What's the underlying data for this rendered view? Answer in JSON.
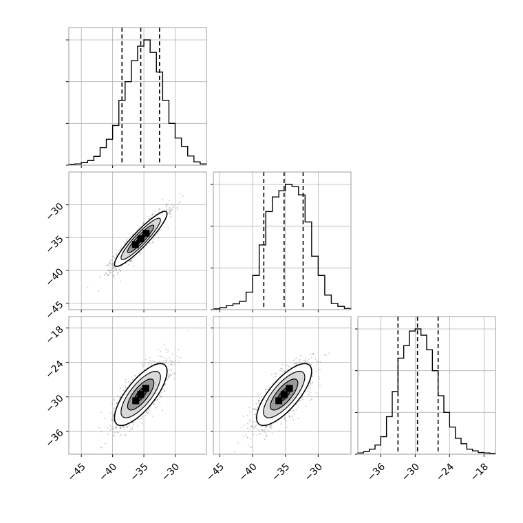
{
  "colors": {
    "line": "#000000",
    "grid": "#b0b0b0",
    "scatter": "#555555",
    "frame": "#999999"
  },
  "chart_data": {
    "type": "corner",
    "grid": true,
    "params": [
      {
        "range": [
          -47,
          -25
        ],
        "ticks": [
          -45,
          -40,
          -35,
          -30
        ]
      },
      {
        "range": [
          -46,
          -25
        ],
        "ticks": [
          -45,
          -40,
          -35,
          -30
        ]
      },
      {
        "range": [
          -40,
          -16
        ],
        "ticks": [
          -36,
          -30,
          -24,
          -18
        ]
      }
    ],
    "hist_ticks": [
      0,
      1,
      2,
      3
    ],
    "histograms": [
      {
        "param": 0,
        "edges": [
          -47,
          -46,
          -45,
          -44,
          -43,
          -42,
          -41,
          -40,
          -39,
          -38,
          -37,
          -36,
          -35,
          -34,
          -33,
          -32,
          -31,
          -30,
          -29,
          -28,
          -27,
          -26,
          -25
        ],
        "counts": [
          0.02,
          0.03,
          0.06,
          0.11,
          0.21,
          0.42,
          0.62,
          0.95,
          1.55,
          2.0,
          2.5,
          2.85,
          3.0,
          2.7,
          2.23,
          1.55,
          1.0,
          0.65,
          0.45,
          0.22,
          0.08,
          0.03
        ],
        "quantiles": [
          -38.5,
          -35.5,
          -32.5
        ]
      },
      {
        "param": 1,
        "edges": [
          -46,
          -45,
          -44,
          -43,
          -42,
          -41,
          -40,
          -39,
          -38,
          -37,
          -36,
          -35,
          -34,
          -33,
          -32,
          -31,
          -30,
          -29,
          -28,
          -27,
          -26,
          -25
        ],
        "counts": [
          0.02,
          0.05,
          0.1,
          0.14,
          0.2,
          0.42,
          0.82,
          1.55,
          2.35,
          2.7,
          2.85,
          3.0,
          2.95,
          2.75,
          2.1,
          1.28,
          0.82,
          0.35,
          0.15,
          0.08,
          0.03
        ],
        "quantiles": [
          -38.3,
          -35.2,
          -32.3
        ]
      },
      {
        "param": 2,
        "edges": [
          -40,
          -39,
          -38,
          -37,
          -36,
          -35,
          -34,
          -33,
          -32,
          -31,
          -30,
          -29,
          -28,
          -27,
          -26,
          -25,
          -24,
          -23,
          -22,
          -21,
          -20,
          -19,
          -18,
          -17,
          -16
        ],
        "counts": [
          0.03,
          0.06,
          0.12,
          0.22,
          0.42,
          0.9,
          1.5,
          2.3,
          2.6,
          2.95,
          3.0,
          2.85,
          2.5,
          2.0,
          1.4,
          1.0,
          0.65,
          0.38,
          0.25,
          0.12,
          0.08,
          0.04,
          0.03,
          0.02
        ],
        "quantiles": [
          -33.0,
          -29.6,
          -26.0
        ]
      }
    ],
    "scatter_panels": [
      {
        "x": 0,
        "y": 1,
        "mean": [
          -35.5,
          -35.2
        ],
        "sd": [
          2.1,
          2.1
        ],
        "corr": 0.92,
        "contour_levels": [
          0.5,
          1.0,
          1.5,
          2.0
        ],
        "n_points": 1500
      },
      {
        "x": 0,
        "y": 2,
        "mean": [
          -35.5,
          -29.6
        ],
        "sd": [
          2.1,
          2.7
        ],
        "corr": 0.75,
        "contour_levels": [
          0.5,
          1.0,
          1.5,
          2.0
        ],
        "n_points": 1500
      },
      {
        "x": 1,
        "y": 2,
        "mean": [
          -35.2,
          -29.6
        ],
        "sd": [
          2.1,
          2.7
        ],
        "corr": 0.75,
        "contour_levels": [
          0.5,
          1.0,
          1.5,
          2.0
        ],
        "n_points": 1500
      }
    ]
  }
}
